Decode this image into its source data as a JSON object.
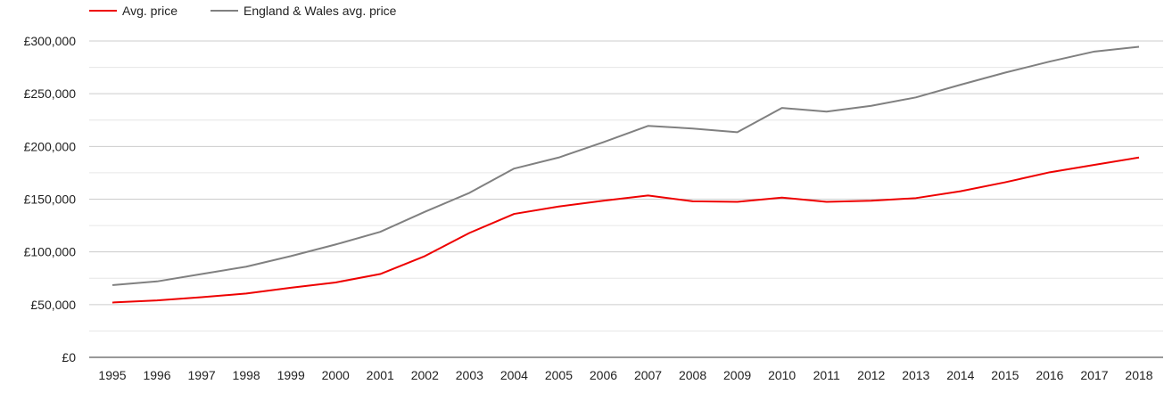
{
  "chart_data": {
    "type": "line",
    "title": "",
    "xlabel": "",
    "ylabel": "",
    "ylim": [
      0,
      300000
    ],
    "grid": true,
    "legend_position": "top-left",
    "categories": [
      "1995",
      "1996",
      "1997",
      "1998",
      "1999",
      "2000",
      "2001",
      "2002",
      "2003",
      "2004",
      "2005",
      "2006",
      "2007",
      "2008",
      "2009",
      "2010",
      "2011",
      "2012",
      "2013",
      "2014",
      "2015",
      "2016",
      "2017",
      "2018"
    ],
    "y_ticks": [
      {
        "value": 0,
        "label": "£0"
      },
      {
        "value": 50000,
        "label": "£50,000"
      },
      {
        "value": 100000,
        "label": "£100,000"
      },
      {
        "value": 150000,
        "label": "£150,000"
      },
      {
        "value": 200000,
        "label": "£200,000"
      },
      {
        "value": 250000,
        "label": "£250,000"
      },
      {
        "value": 300000,
        "label": "£300,000"
      }
    ],
    "series": [
      {
        "name": "Avg. price",
        "color": "#ee0000",
        "values": [
          52000,
          54000,
          57000,
          60500,
          66000,
          71000,
          79000,
          96000,
          118000,
          136000,
          143000,
          148500,
          153500,
          148000,
          147500,
          151500,
          147500,
          148500,
          151000,
          157500,
          166000,
          175500,
          182500,
          189500
        ]
      },
      {
        "name": "England & Wales avg. price",
        "color": "#808080",
        "values": [
          68500,
          72000,
          79000,
          86000,
          96000,
          107000,
          119000,
          138000,
          156000,
          179000,
          189500,
          204000,
          219500,
          217000,
          213500,
          236500,
          233000,
          238500,
          246500,
          258500,
          270000,
          280500,
          290000,
          294500
        ]
      }
    ]
  }
}
